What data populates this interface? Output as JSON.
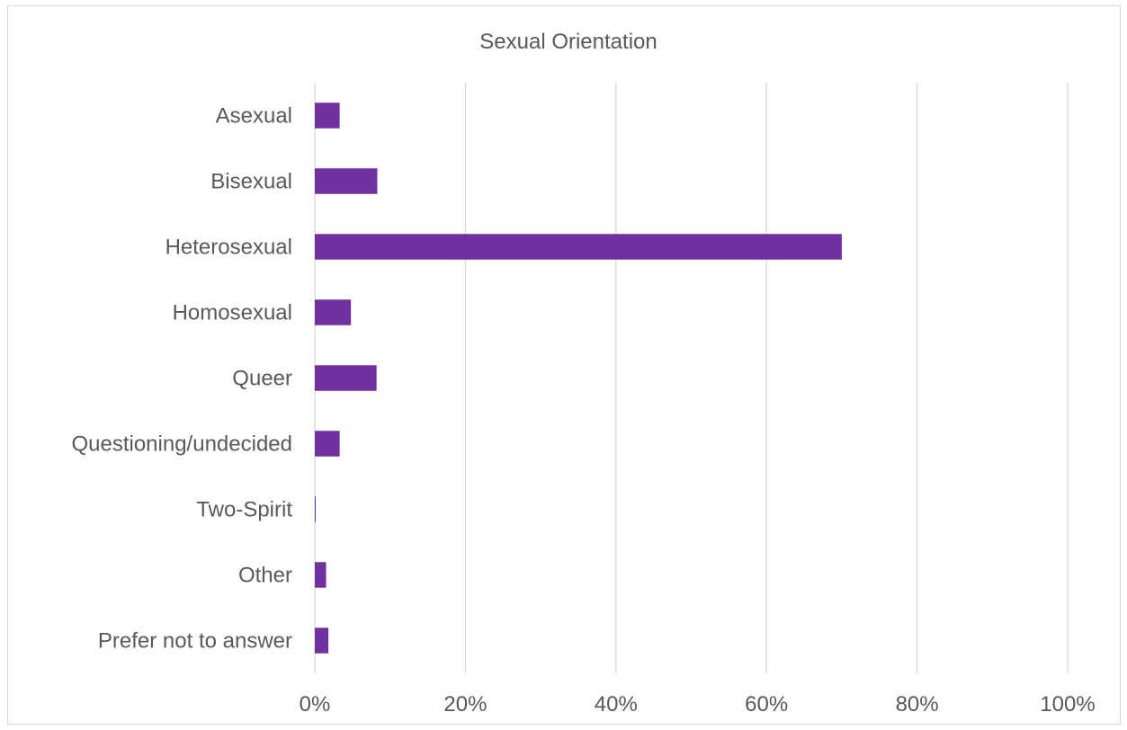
{
  "chart_data": {
    "type": "bar",
    "orientation": "horizontal",
    "title": "Sexual Orientation",
    "xlabel": "",
    "ylabel": "",
    "categories": [
      "Asexual",
      "Bisexual",
      "Heterosexual",
      "Homosexual",
      "Queer",
      "Questioning/undecided",
      "Two-Spirit",
      "Other",
      "Prefer not to answer"
    ],
    "values": [
      3.3,
      8.3,
      70.0,
      4.8,
      8.2,
      3.3,
      0.1,
      1.5,
      1.8
    ],
    "xlim": [
      0,
      100
    ],
    "ticks": [
      "0%",
      "20%",
      "40%",
      "60%",
      "80%",
      "100%"
    ],
    "tick_values": [
      0,
      20,
      40,
      60,
      80,
      100
    ],
    "grid": true,
    "legend": "none",
    "bar_color": "#7030a0",
    "grid_color": "#d9d9d9",
    "text_color": "#595959"
  }
}
